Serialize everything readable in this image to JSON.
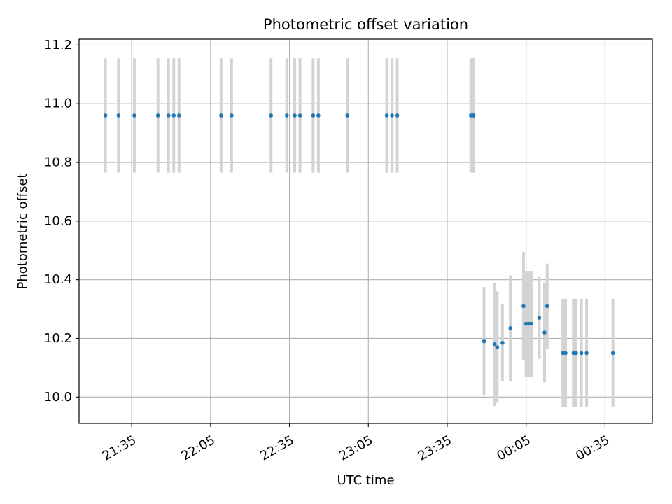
{
  "chart_data": {
    "type": "scatter",
    "title": "Photometric offset variation",
    "xlabel": "UTC time",
    "ylabel": "Photometric offset",
    "x_axis_type": "time",
    "x_date_base": "2000-01-01",
    "xlim": [
      "21:15",
      "00:53"
    ],
    "ylim": [
      9.91,
      11.22
    ],
    "x_ticks": [
      "21:35",
      "22:05",
      "22:35",
      "23:05",
      "23:35",
      "00:05",
      "00:35"
    ],
    "x_tick_values": [
      "21:35",
      "22:05",
      "22:35",
      "23:05",
      "23:35",
      "00:05",
      "00:35"
    ],
    "y_ticks": [
      "10.0",
      "10.2",
      "10.4",
      "10.6",
      "10.8",
      "11.0",
      "11.2"
    ],
    "y_tick_values": [
      10.0,
      10.2,
      10.4,
      10.6,
      10.8,
      11.0,
      11.2
    ],
    "grid": true,
    "point_color": "#1f77b4",
    "errorbar_color": "#d3d3d3",
    "series": [
      {
        "x": [
          "21:25",
          "21:30",
          "21:36",
          "21:45",
          "21:49",
          "21:51",
          "21:53",
          "22:09",
          "22:13",
          "22:28",
          "22:34",
          "22:37",
          "22:39",
          "22:44",
          "22:46",
          "22:57",
          "23:12",
          "23:14",
          "23:16",
          "23:44",
          "23:45",
          "23:45",
          "23:49",
          "23:53",
          "23:54",
          "23:56",
          "23:59",
          "00:04",
          "00:05",
          "00:06",
          "00:07",
          "00:10",
          "00:12",
          "00:13",
          "00:19",
          "00:20",
          "00:23",
          "00:24",
          "00:26",
          "00:28",
          "00:38"
        ],
        "y": [
          10.96,
          10.96,
          10.96,
          10.96,
          10.96,
          10.96,
          10.96,
          10.96,
          10.96,
          10.96,
          10.96,
          10.96,
          10.96,
          10.96,
          10.96,
          10.96,
          10.96,
          10.96,
          10.96,
          10.96,
          10.96,
          10.96,
          10.19,
          10.18,
          10.17,
          10.185,
          10.235,
          10.31,
          10.25,
          10.25,
          10.25,
          10.27,
          10.22,
          10.31,
          10.15,
          10.15,
          10.15,
          10.15,
          10.15,
          10.15,
          10.15
        ],
        "yerr": [
          0.195,
          0.195,
          0.195,
          0.195,
          0.195,
          0.195,
          0.195,
          0.195,
          0.195,
          0.195,
          0.195,
          0.195,
          0.195,
          0.195,
          0.195,
          0.195,
          0.195,
          0.195,
          0.195,
          0.195,
          0.195,
          0.195,
          0.185,
          0.21,
          0.19,
          0.13,
          0.18,
          0.185,
          0.18,
          0.18,
          0.18,
          0.14,
          0.17,
          0.145,
          0.185,
          0.185,
          0.185,
          0.185,
          0.185,
          0.185,
          0.185
        ]
      }
    ]
  }
}
